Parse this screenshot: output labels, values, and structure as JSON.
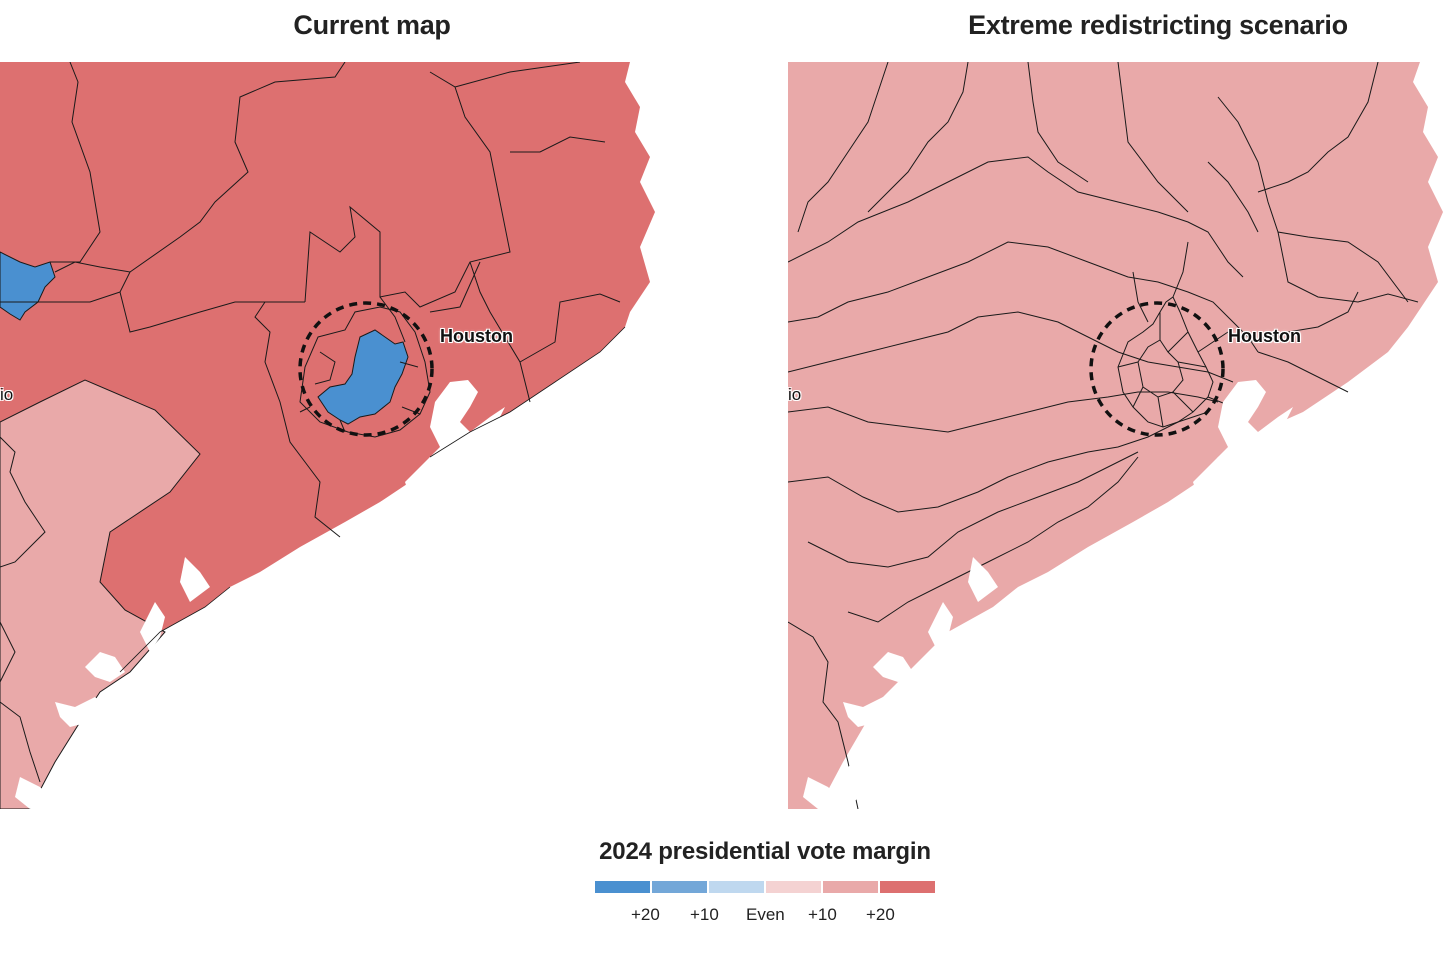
{
  "panels": {
    "left": {
      "title": "Current map"
    },
    "right": {
      "title": "Extreme redistricting scenario"
    }
  },
  "labels": {
    "houston": "Houston",
    "san_antonio_partial": "io"
  },
  "legend": {
    "title": "2024 presidential vote margin",
    "bins": [
      {
        "party": "D",
        "margin": "+20",
        "color": "#4a90d0"
      },
      {
        "party": "D",
        "margin": "+10",
        "color": "#73a7d8"
      },
      {
        "party": "D",
        "margin": "0-10",
        "color": "#bfd8ef"
      },
      {
        "party": "R",
        "margin": "0-10",
        "color": "#f4d2d2"
      },
      {
        "party": "R",
        "margin": "+10",
        "color": "#e9a9a9"
      },
      {
        "party": "R",
        "margin": "+20",
        "color": "#dd7070"
      }
    ],
    "ticks": [
      "+20",
      "+10",
      "Even",
      "+10",
      "+20"
    ]
  },
  "colors": {
    "strong_r": "#dd7070",
    "lean_r": "#e9a9a9",
    "strong_d": "#4a90d0",
    "border": "#1a1a1a",
    "water": "#ffffff"
  }
}
